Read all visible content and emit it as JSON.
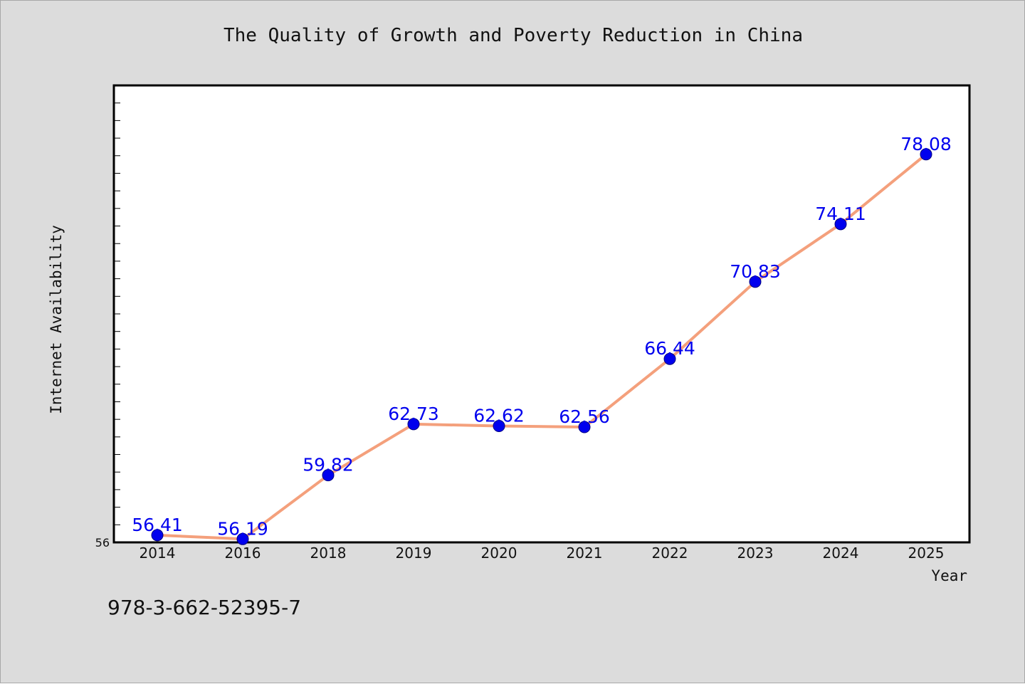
{
  "chart_data": {
    "type": "line",
    "title": "The Quality of Growth and Poverty Reduction in China",
    "xlabel": "Year",
    "ylabel": "Internet Availability",
    "categories": [
      "2014",
      "2016",
      "2018",
      "2019",
      "2020",
      "2021",
      "2022",
      "2023",
      "2024",
      "2025"
    ],
    "series": [
      {
        "values": [
          56.41,
          56.19,
          59.82,
          62.73,
          62.62,
          62.56,
          66.44,
          70.83,
          74.11,
          78.08
        ],
        "labels": [
          "56.41",
          "56.19",
          "59.82",
          "62.73",
          "62.62",
          "62.56",
          "66.44",
          "70.83",
          "74.11",
          "78.08"
        ]
      }
    ],
    "ylim": [
      56,
      82
    ],
    "yticks_labeled": [
      "56"
    ],
    "grid": false,
    "colors": {
      "line": "#f4a07c",
      "marker": "#0000ee",
      "label": "#0000ee",
      "background": "#dcdcdc",
      "plot": "#ffffff"
    }
  },
  "footnote": "978-3-662-52395-7"
}
